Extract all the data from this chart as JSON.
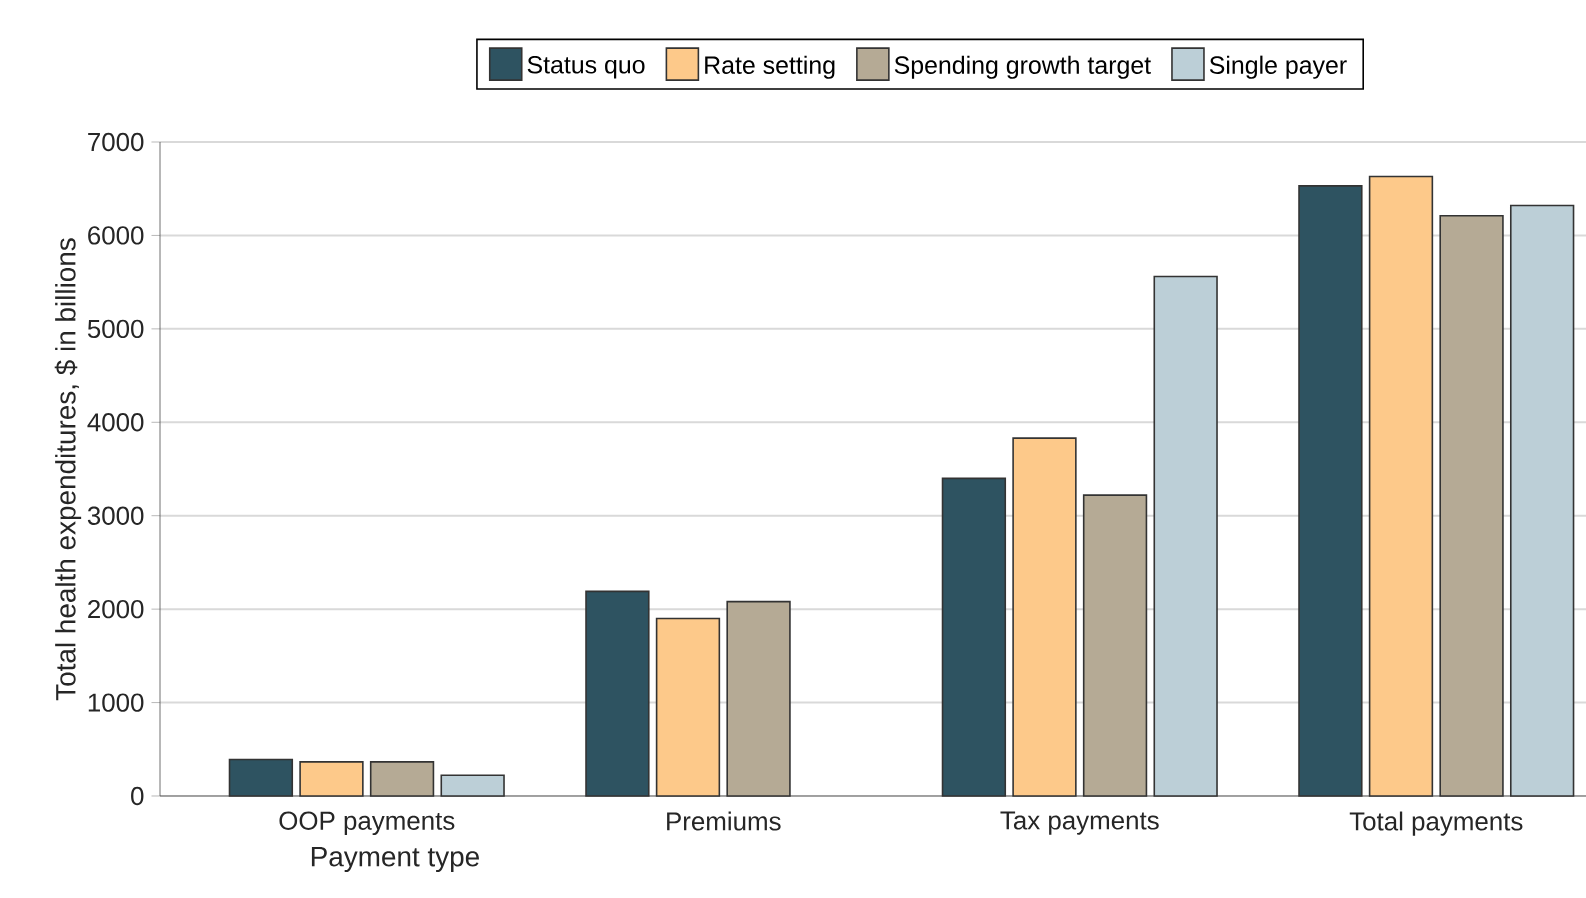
{
  "chart_data": {
    "type": "bar",
    "xlabel": "Payment type",
    "ylabel": "Total health expenditures, $ in billions",
    "categories": [
      "OOP payments",
      "Premiums",
      "Tax payments",
      "Total payments"
    ],
    "series": [
      {
        "name": "Status quo",
        "color": "#2e5361",
        "values": [
          390,
          2190,
          3400,
          6530
        ]
      },
      {
        "name": "Rate setting",
        "color": "#fdc98a",
        "values": [
          365,
          1900,
          3830,
          6630
        ]
      },
      {
        "name": "Spending growth target",
        "color": "#b5aa95",
        "values": [
          365,
          2080,
          3220,
          6210
        ]
      },
      {
        "name": "Single payer",
        "color": "#bccfd7",
        "values": [
          222,
          null,
          5560,
          6320
        ]
      }
    ],
    "ylim": [
      0,
      7000
    ],
    "yticks": [
      0,
      1000,
      2000,
      3000,
      4000,
      5000,
      6000,
      7000
    ],
    "grid": "y",
    "legend": "top"
  }
}
